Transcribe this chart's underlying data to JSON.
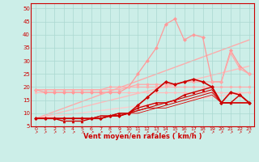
{
  "bg_color": "#cceee8",
  "grid_color": "#aad8d0",
  "x_label": "Vent moyen/en rafales ( km/h )",
  "x_ticks": [
    0,
    1,
    2,
    3,
    4,
    5,
    6,
    7,
    8,
    9,
    10,
    11,
    12,
    13,
    14,
    15,
    16,
    17,
    18,
    19,
    20,
    21,
    22,
    23
  ],
  "ylim": [
    5,
    52
  ],
  "xlim": [
    -0.5,
    23.5
  ],
  "y_ticks": [
    5,
    10,
    15,
    20,
    25,
    30,
    35,
    40,
    45,
    50
  ],
  "series": [
    {
      "comment": "pink diagonal straight line bottom-left to top-right (linear trend high)",
      "x": [
        0,
        23
      ],
      "y": [
        8,
        38
      ],
      "color": "#ffaaaa",
      "marker": null,
      "markersize": 0,
      "linewidth": 1.0,
      "linestyle": "-",
      "zorder": 1
    },
    {
      "comment": "pink diagonal straight line bottom-left to top-right (linear trend mid)",
      "x": [
        0,
        23
      ],
      "y": [
        8,
        28
      ],
      "color": "#ffbbbb",
      "marker": null,
      "markersize": 0,
      "linewidth": 1.0,
      "linestyle": "-",
      "zorder": 1
    },
    {
      "comment": "pink diagonal straight line (linear trend low)",
      "x": [
        0,
        23
      ],
      "y": [
        8,
        18
      ],
      "color": "#ffcccc",
      "marker": null,
      "markersize": 0,
      "linewidth": 1.0,
      "linestyle": "-",
      "zorder": 1
    },
    {
      "comment": "light pink horizontal line ~20 with dots",
      "x": [
        0,
        1,
        2,
        3,
        4,
        5,
        6,
        7,
        8,
        9,
        10,
        11,
        12,
        13,
        14,
        15,
        16,
        17,
        18,
        19,
        20,
        21,
        22,
        23
      ],
      "y": [
        19,
        19,
        19,
        19,
        19,
        19,
        19,
        19,
        19,
        19,
        20,
        20,
        20,
        20,
        20,
        20,
        20,
        20,
        20,
        20,
        20,
        20,
        20,
        20
      ],
      "color": "#ffaaaa",
      "marker": "o",
      "markersize": 1.8,
      "linewidth": 0.8,
      "linestyle": "-",
      "zorder": 2
    },
    {
      "comment": "light pink horizontal ~18 with dots",
      "x": [
        0,
        1,
        2,
        3,
        4,
        5,
        6,
        7,
        8,
        9,
        10,
        11,
        12,
        13,
        14,
        15,
        16,
        17,
        18,
        19,
        20,
        21,
        22,
        23
      ],
      "y": [
        18,
        18,
        18,
        18,
        18,
        18,
        18,
        18,
        18,
        18,
        18,
        18,
        18,
        18,
        18,
        18,
        18,
        18,
        18,
        18,
        18,
        18,
        18,
        18
      ],
      "color": "#ffbbbb",
      "marker": "o",
      "markersize": 1.8,
      "linewidth": 0.8,
      "linestyle": "-",
      "zorder": 2
    },
    {
      "comment": "pink with diamonds - spiky high line peaking at 14-15 ~46",
      "x": [
        0,
        1,
        2,
        3,
        4,
        5,
        6,
        7,
        8,
        9,
        10,
        11,
        12,
        13,
        14,
        15,
        16,
        17,
        18,
        19,
        20,
        21,
        22,
        23
      ],
      "y": [
        19,
        18,
        18,
        18,
        18,
        18,
        18,
        18,
        18,
        18,
        20,
        25,
        30,
        35,
        44,
        46,
        38,
        40,
        39,
        22,
        22,
        34,
        28,
        25
      ],
      "color": "#ff9999",
      "marker": "D",
      "markersize": 2,
      "linewidth": 0.9,
      "linestyle": "-",
      "zorder": 3
    },
    {
      "comment": "medium pink with dots - rising gently then plateau ~20 then triangle peak at 21",
      "x": [
        0,
        1,
        2,
        3,
        4,
        5,
        6,
        7,
        8,
        9,
        10,
        11,
        12,
        13,
        14,
        15,
        16,
        17,
        18,
        19,
        20,
        21,
        22,
        23
      ],
      "y": [
        19,
        19,
        19,
        19,
        19,
        19,
        19,
        19,
        20,
        20,
        20,
        21,
        21,
        21,
        21,
        21,
        22,
        22,
        22,
        22,
        22,
        33,
        27,
        25
      ],
      "color": "#ffaaaa",
      "marker": "o",
      "markersize": 2,
      "linewidth": 0.9,
      "linestyle": "-",
      "zorder": 3
    },
    {
      "comment": "dark red with diamonds - main data line",
      "x": [
        0,
        1,
        2,
        3,
        4,
        5,
        6,
        7,
        8,
        9,
        10,
        11,
        12,
        13,
        14,
        15,
        16,
        17,
        18,
        19,
        20,
        21,
        22,
        23
      ],
      "y": [
        8,
        8,
        8,
        8,
        8,
        8,
        8,
        8,
        9,
        9,
        10,
        13,
        16,
        19,
        22,
        21,
        22,
        23,
        22,
        20,
        14,
        18,
        17,
        14
      ],
      "color": "#cc0000",
      "marker": "D",
      "markersize": 2,
      "linewidth": 1.2,
      "linestyle": "-",
      "zorder": 6
    },
    {
      "comment": "dark red with triangles",
      "x": [
        0,
        1,
        2,
        3,
        4,
        5,
        6,
        7,
        8,
        9,
        10,
        11,
        12,
        13,
        14,
        15,
        16,
        17,
        18,
        19,
        20,
        21,
        22,
        23
      ],
      "y": [
        8,
        8,
        8,
        7,
        7,
        7,
        8,
        8,
        9,
        10,
        10,
        12,
        13,
        14,
        14,
        15,
        17,
        18,
        19,
        20,
        14,
        14,
        17,
        14
      ],
      "color": "#cc0000",
      "marker": "^",
      "markersize": 2,
      "linewidth": 1.0,
      "linestyle": "-",
      "zorder": 5
    },
    {
      "comment": "dark red no marker line 1",
      "x": [
        0,
        1,
        2,
        3,
        4,
        5,
        6,
        7,
        8,
        9,
        10,
        11,
        12,
        13,
        14,
        15,
        16,
        17,
        18,
        19,
        20,
        21,
        22,
        23
      ],
      "y": [
        8,
        8,
        8,
        8,
        8,
        8,
        8,
        9,
        9,
        10,
        10,
        11,
        12,
        13,
        14,
        15,
        16,
        17,
        18,
        19,
        14,
        14,
        14,
        14
      ],
      "color": "#cc0000",
      "marker": null,
      "markersize": 0,
      "linewidth": 0.8,
      "linestyle": "-",
      "zorder": 4
    },
    {
      "comment": "dark red no marker line 2",
      "x": [
        0,
        1,
        2,
        3,
        4,
        5,
        6,
        7,
        8,
        9,
        10,
        11,
        12,
        13,
        14,
        15,
        16,
        17,
        18,
        19,
        20,
        21,
        22,
        23
      ],
      "y": [
        8,
        8,
        8,
        8,
        8,
        8,
        8,
        9,
        9,
        9,
        10,
        11,
        12,
        12,
        13,
        14,
        15,
        16,
        17,
        18,
        14,
        14,
        14,
        14
      ],
      "color": "#cc0000",
      "marker": null,
      "markersize": 0,
      "linewidth": 0.7,
      "linestyle": "-",
      "zorder": 4
    },
    {
      "comment": "dark red no marker line 3 - lowest",
      "x": [
        0,
        1,
        2,
        3,
        4,
        5,
        6,
        7,
        8,
        9,
        10,
        11,
        12,
        13,
        14,
        15,
        16,
        17,
        18,
        19,
        20,
        21,
        22,
        23
      ],
      "y": [
        8,
        8,
        8,
        8,
        8,
        8,
        8,
        8,
        9,
        9,
        10,
        10,
        11,
        12,
        12,
        13,
        14,
        15,
        16,
        17,
        14,
        14,
        14,
        14
      ],
      "color": "#dd0000",
      "marker": null,
      "markersize": 0,
      "linewidth": 0.6,
      "linestyle": "-",
      "zorder": 4
    }
  ],
  "arrow_ticks": "↗"
}
